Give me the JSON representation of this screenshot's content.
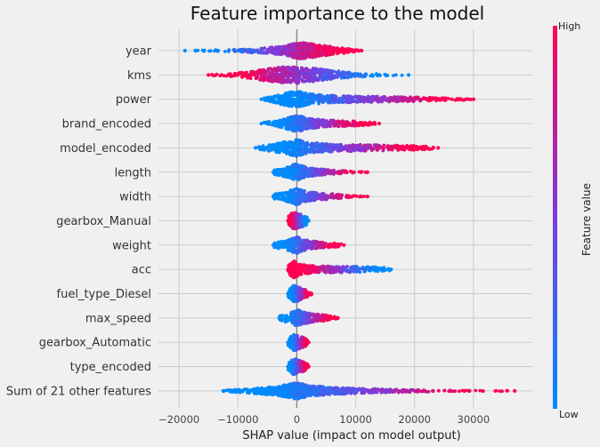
{
  "chart_data": {
    "type": "scatter",
    "title": "Feature importance to the model",
    "xlabel": "SHAP value (impact on model output)",
    "ylabel": "",
    "xlim": [
      -23500,
      40000
    ],
    "x_ticks": [
      -20000,
      -10000,
      0,
      10000,
      20000,
      30000
    ],
    "x_tick_labels": [
      "−20000",
      "−10000",
      "0",
      "10000",
      "20000",
      "30000"
    ],
    "grid": true,
    "colorbar": {
      "title": "Feature value",
      "high_label": "High",
      "low_label": "Low",
      "high_color": "#ff0052",
      "low_color": "#008bfb"
    },
    "features": [
      {
        "name": "year",
        "min": -19000,
        "max": 11000,
        "high_side": "positive",
        "density": [
          [
            -19000,
            0.02
          ],
          [
            -15000,
            0.05
          ],
          [
            -10000,
            0.1
          ],
          [
            -6000,
            0.25
          ],
          [
            -3000,
            0.4
          ],
          [
            -1000,
            0.7
          ],
          [
            0,
            1.0
          ],
          [
            1500,
            0.9
          ],
          [
            3000,
            0.75
          ],
          [
            6000,
            0.4
          ],
          [
            9000,
            0.15
          ],
          [
            11000,
            0.05
          ]
        ]
      },
      {
        "name": "kms",
        "min": -15000,
        "max": 19000,
        "high_side": "negative",
        "density": [
          [
            -15000,
            0.03
          ],
          [
            -12000,
            0.08
          ],
          [
            -8000,
            0.35
          ],
          [
            -5000,
            0.7
          ],
          [
            -2500,
            0.95
          ],
          [
            0,
            1.0
          ],
          [
            3000,
            0.75
          ],
          [
            6000,
            0.45
          ],
          [
            10000,
            0.2
          ],
          [
            15000,
            0.06
          ],
          [
            19000,
            0.02
          ]
        ]
      },
      {
        "name": "power",
        "min": -6000,
        "max": 30000,
        "high_side": "positive",
        "density": [
          [
            -6000,
            0.05
          ],
          [
            -4000,
            0.3
          ],
          [
            -2000,
            0.7
          ],
          [
            0,
            1.0
          ],
          [
            2000,
            0.6
          ],
          [
            5000,
            0.4
          ],
          [
            10000,
            0.3
          ],
          [
            15000,
            0.25
          ],
          [
            20000,
            0.2
          ],
          [
            25000,
            0.12
          ],
          [
            30000,
            0.03
          ]
        ]
      },
      {
        "name": "brand_encoded",
        "min": -6000,
        "max": 14000,
        "high_side": "positive",
        "density": [
          [
            -6000,
            0.05
          ],
          [
            -3000,
            0.35
          ],
          [
            -1500,
            0.7
          ],
          [
            0,
            1.0
          ],
          [
            2000,
            0.55
          ],
          [
            5000,
            0.35
          ],
          [
            9000,
            0.25
          ],
          [
            12000,
            0.15
          ],
          [
            14000,
            0.05
          ]
        ]
      },
      {
        "name": "model_encoded",
        "min": -7000,
        "max": 24000,
        "high_side": "positive",
        "density": [
          [
            -7000,
            0.05
          ],
          [
            -4000,
            0.4
          ],
          [
            -2000,
            0.7
          ],
          [
            0,
            1.0
          ],
          [
            2000,
            0.55
          ],
          [
            6000,
            0.4
          ],
          [
            12000,
            0.3
          ],
          [
            18000,
            0.25
          ],
          [
            22000,
            0.15
          ],
          [
            24000,
            0.04
          ]
        ]
      },
      {
        "name": "length",
        "min": -4000,
        "max": 12000,
        "high_side": "positive",
        "density": [
          [
            -4000,
            0.2
          ],
          [
            -2000,
            0.5
          ],
          [
            -500,
            0.9
          ],
          [
            0,
            1.0
          ],
          [
            1500,
            0.55
          ],
          [
            3000,
            0.35
          ],
          [
            6000,
            0.2
          ],
          [
            9000,
            0.1
          ],
          [
            12000,
            0.03
          ]
        ]
      },
      {
        "name": "width",
        "min": -4000,
        "max": 12000,
        "high_side": "positive",
        "density": [
          [
            -4000,
            0.2
          ],
          [
            -2000,
            0.45
          ],
          [
            -500,
            0.9
          ],
          [
            0,
            1.0
          ],
          [
            1500,
            0.55
          ],
          [
            4000,
            0.35
          ],
          [
            7000,
            0.2
          ],
          [
            8000,
            0.1
          ],
          [
            12000,
            0.02
          ]
        ]
      },
      {
        "name": "gearbox_Manual",
        "min": -1500,
        "max": 2000,
        "high_side": "negative",
        "density": [
          [
            -1500,
            0.5
          ],
          [
            -700,
            1.0
          ],
          [
            0,
            0.9
          ],
          [
            800,
            0.7
          ],
          [
            1500,
            0.5
          ],
          [
            2000,
            0.2
          ]
        ]
      },
      {
        "name": "weight",
        "min": -4000,
        "max": 8000,
        "high_side": "positive",
        "density": [
          [
            -4000,
            0.2
          ],
          [
            -2000,
            0.5
          ],
          [
            -500,
            0.9
          ],
          [
            0,
            1.0
          ],
          [
            1500,
            0.55
          ],
          [
            4000,
            0.3
          ],
          [
            7000,
            0.15
          ],
          [
            8000,
            0.05
          ]
        ]
      },
      {
        "name": "acc",
        "min": -1500,
        "max": 16000,
        "high_side": "negative",
        "density": [
          [
            -1500,
            0.4
          ],
          [
            -500,
            1.0
          ],
          [
            500,
            0.6
          ],
          [
            3000,
            0.35
          ],
          [
            8000,
            0.3
          ],
          [
            13000,
            0.25
          ],
          [
            16000,
            0.1
          ]
        ]
      },
      {
        "name": "fuel_type_Diesel",
        "min": -1500,
        "max": 2500,
        "high_side": "positive",
        "density": [
          [
            -1500,
            0.3
          ],
          [
            -500,
            1.0
          ],
          [
            500,
            0.8
          ],
          [
            1500,
            0.4
          ],
          [
            2500,
            0.15
          ]
        ]
      },
      {
        "name": "max_speed",
        "min": -3000,
        "max": 7000,
        "high_side": "positive",
        "density": [
          [
            -3000,
            0.2
          ],
          [
            -1000,
            0.6
          ],
          [
            0,
            1.0
          ],
          [
            2000,
            0.5
          ],
          [
            5000,
            0.3
          ],
          [
            7000,
            0.1
          ]
        ]
      },
      {
        "name": "gearbox_Automatic",
        "min": -1500,
        "max": 2000,
        "high_side": "positive",
        "density": [
          [
            -1500,
            0.3
          ],
          [
            -500,
            1.0
          ],
          [
            500,
            0.7
          ],
          [
            1500,
            0.4
          ],
          [
            2000,
            0.15
          ]
        ]
      },
      {
        "name": "type_encoded",
        "min": -1500,
        "max": 2000,
        "high_side": "positive",
        "density": [
          [
            -1500,
            0.3
          ],
          [
            -500,
            1.0
          ],
          [
            500,
            0.7
          ],
          [
            1500,
            0.4
          ],
          [
            2000,
            0.15
          ]
        ]
      },
      {
        "name": "Sum of 21 other features",
        "min": -12500,
        "max": 37000,
        "high_side": "positive",
        "density": [
          [
            -12500,
            0.05
          ],
          [
            -8000,
            0.2
          ],
          [
            -4000,
            0.45
          ],
          [
            -1000,
            0.8
          ],
          [
            0,
            1.0
          ],
          [
            2000,
            0.6
          ],
          [
            6000,
            0.35
          ],
          [
            12000,
            0.2
          ],
          [
            18000,
            0.12
          ],
          [
            23000,
            0.06
          ],
          [
            27000,
            0.03
          ],
          [
            37000,
            0.02
          ]
        ]
      }
    ]
  }
}
